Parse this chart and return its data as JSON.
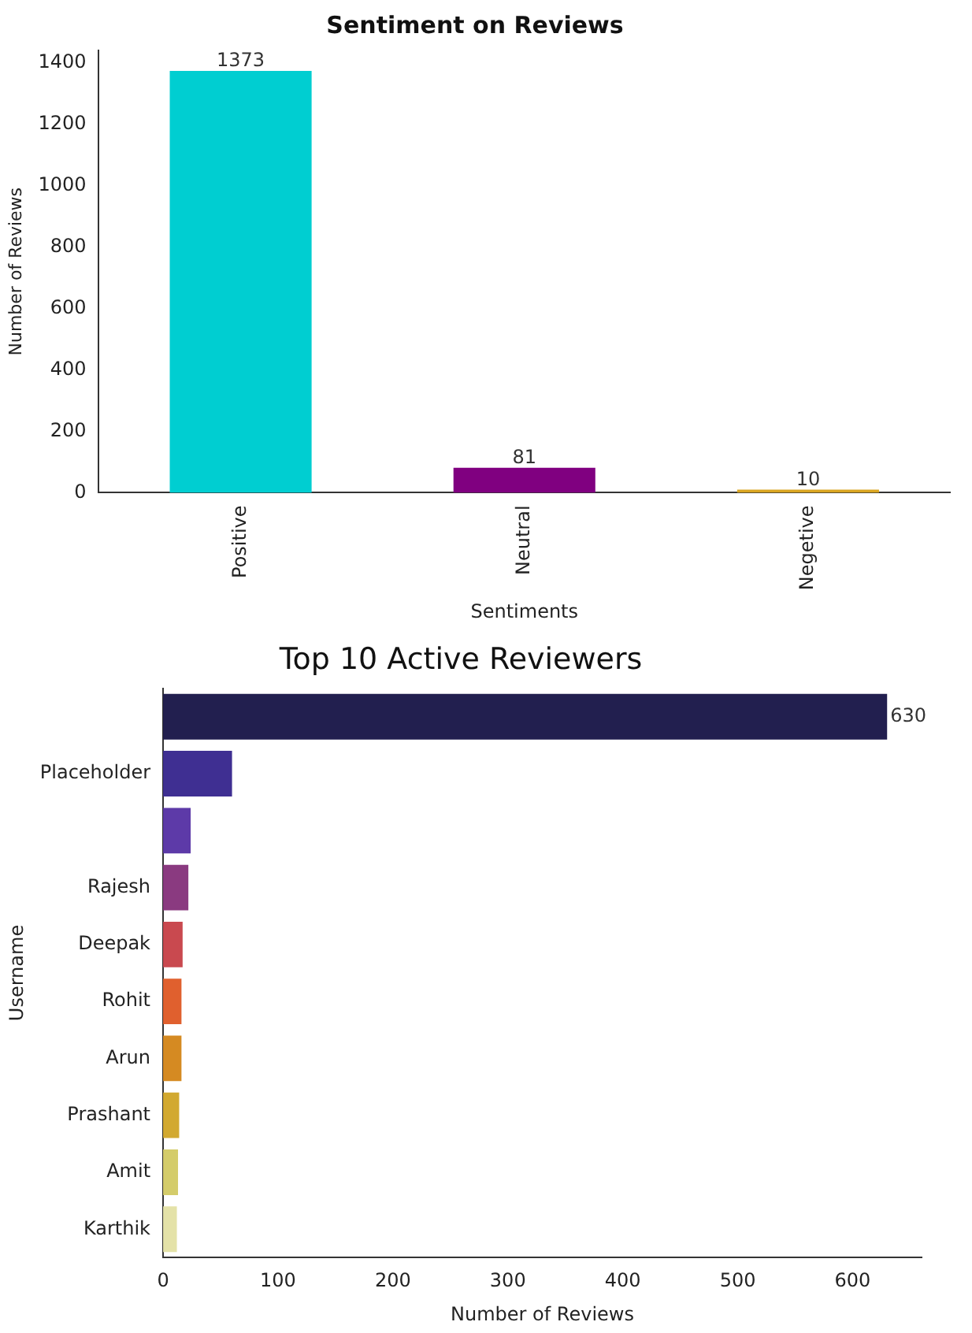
{
  "chart_data": [
    {
      "type": "bar",
      "title": "Sentiment on Reviews",
      "xlabel": "Sentiments",
      "ylabel": "Number of Reviews",
      "categories": [
        "Positive",
        "Neutral",
        "Negetive"
      ],
      "values": [
        1373,
        81,
        10
      ],
      "colors": [
        "#00ced1",
        "#800080",
        "#daa520"
      ],
      "ylim": [
        0,
        1440
      ],
      "yticks": [
        0,
        200,
        400,
        600,
        800,
        1000,
        1200,
        1400
      ],
      "data_labels": true,
      "grid": false,
      "legend": false
    },
    {
      "type": "bar",
      "orientation": "horizontal",
      "title": "Top 10 Active Reviewers",
      "xlabel": "Number of Reviews",
      "ylabel": "Username",
      "categories": [
        null,
        "Placeholder",
        null,
        "Rajesh",
        "Deepak",
        "Rohit",
        "Arun",
        "Prashant",
        "Amit",
        "Karthik"
      ],
      "values": [
        630,
        60,
        24,
        22,
        17,
        16,
        16,
        14,
        13,
        12
      ],
      "value_labels": [
        "630",
        null,
        null,
        null,
        null,
        null,
        null,
        null,
        null,
        null
      ],
      "colors": [
        "#221f4f",
        "#3f2f92",
        "#5d3aa8",
        "#8a3a80",
        "#c9494f",
        "#e0602e",
        "#d58a22",
        "#d2a930",
        "#d4cc6a",
        "#e4e2a8"
      ],
      "xlim": [
        0,
        660
      ],
      "xticks": [
        0,
        100,
        200,
        300,
        400,
        500,
        600
      ],
      "grid": false,
      "legend": false
    }
  ]
}
